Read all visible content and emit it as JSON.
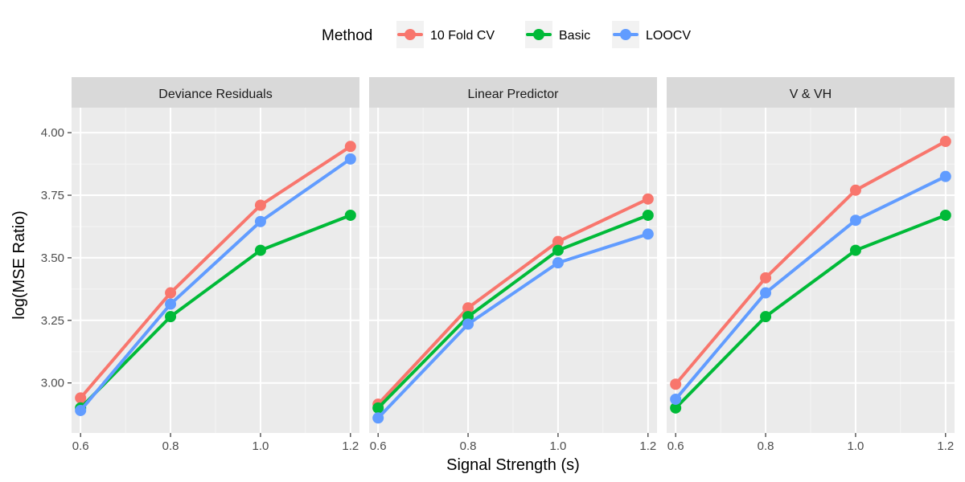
{
  "chart_data": {
    "type": "line",
    "xlabel": "Signal Strength (s)",
    "ylabel": "log(MSE Ratio)",
    "xlim": [
      0.58,
      1.22
    ],
    "ylim": [
      2.8,
      4.1
    ],
    "x_ticks": [
      0.6,
      0.8,
      1.0,
      1.2
    ],
    "x_tick_labels": [
      "0.6",
      "0.8",
      "1.0",
      "1.2"
    ],
    "y_ticks": [
      3.0,
      3.25,
      3.5,
      3.75,
      4.0
    ],
    "y_tick_labels": [
      "3.00",
      "3.25",
      "3.50",
      "3.75",
      "4.00"
    ],
    "grid": true,
    "legend": {
      "title": "Method",
      "position": "top",
      "entries": [
        "10 Fold CV",
        "Basic",
        "LOOCV"
      ]
    },
    "colors": {
      "10 Fold CV": "#F8766D",
      "Basic": "#00BA38",
      "LOOCV": "#619CFF"
    },
    "panels": [
      {
        "title": "Deviance Residuals",
        "x": [
          0.6,
          0.8,
          1.0,
          1.2
        ],
        "series": [
          {
            "name": "10 Fold CV",
            "values": [
              2.94,
              3.36,
              3.71,
              3.945
            ]
          },
          {
            "name": "Basic",
            "values": [
              2.9,
              3.265,
              3.53,
              3.67
            ]
          },
          {
            "name": "LOOCV",
            "values": [
              2.89,
              3.315,
              3.645,
              3.895
            ]
          }
        ]
      },
      {
        "title": "Linear Predictor",
        "x": [
          0.6,
          0.8,
          1.0,
          1.2
        ],
        "series": [
          {
            "name": "10 Fold CV",
            "values": [
              2.915,
              3.3,
              3.565,
              3.735
            ]
          },
          {
            "name": "Basic",
            "values": [
              2.9,
              3.265,
              3.53,
              3.67
            ]
          },
          {
            "name": "LOOCV",
            "values": [
              2.86,
              3.235,
              3.48,
              3.595
            ]
          }
        ]
      },
      {
        "title": "V & VH",
        "x": [
          0.6,
          0.8,
          1.0,
          1.2
        ],
        "series": [
          {
            "name": "10 Fold CV",
            "values": [
              2.995,
              3.42,
              3.77,
              3.965
            ]
          },
          {
            "name": "Basic",
            "values": [
              2.9,
              3.265,
              3.53,
              3.67
            ]
          },
          {
            "name": "LOOCV",
            "values": [
              2.935,
              3.36,
              3.65,
              3.825
            ]
          }
        ]
      }
    ]
  }
}
